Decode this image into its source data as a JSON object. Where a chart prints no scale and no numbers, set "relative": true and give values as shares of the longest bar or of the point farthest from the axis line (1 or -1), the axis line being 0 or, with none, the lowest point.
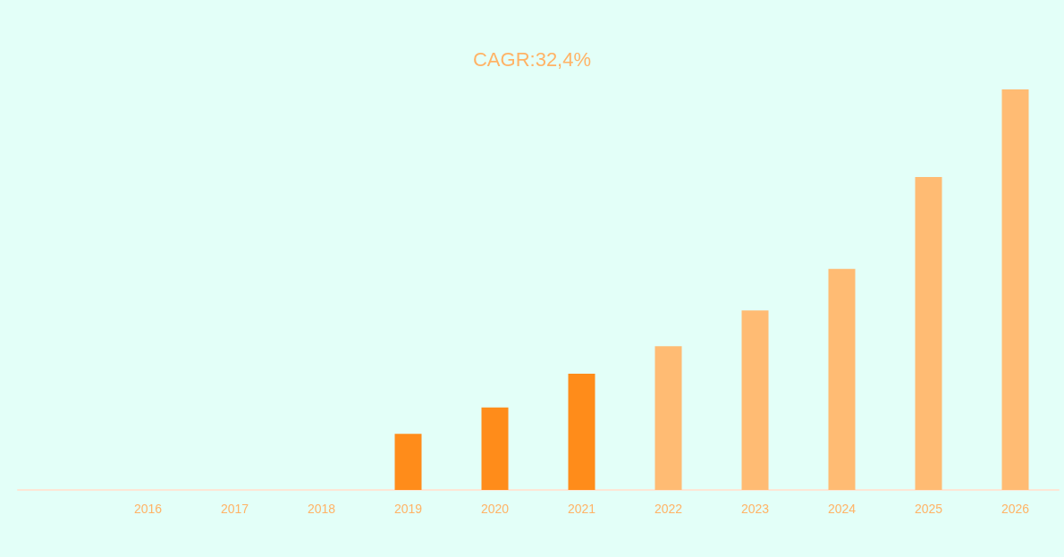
{
  "chart_data": {
    "type": "bar",
    "title": "CAGR:32,4%",
    "relative": true,
    "grid": false,
    "categories": [
      null,
      "2016",
      "2017",
      "2018",
      "2019",
      "2020",
      "2021",
      "2022",
      "2023",
      "2024",
      "2025",
      "2026"
    ],
    "values": [
      null,
      0,
      0,
      0,
      0.14,
      0.206,
      0.29,
      0.359,
      0.448,
      0.552,
      0.781,
      1
    ],
    "colors": [
      "#ff8c1a",
      "#ff8c1a",
      "#ff8c1a",
      "#ff8c1a",
      "#ff8c1a",
      "#ff8c1a",
      "#ff8c1a",
      "#ffbb73",
      "#ffbb73",
      "#ffbb73",
      "#ffbb73",
      "#ffbb73"
    ]
  }
}
